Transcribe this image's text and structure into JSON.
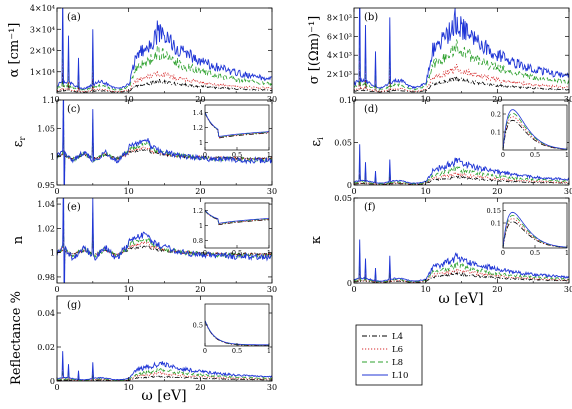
{
  "legend": {
    "entries": [
      {
        "label": "L4",
        "color": "#000000",
        "dash": "5,2,1,2"
      },
      {
        "label": "L6",
        "color": "#d62728",
        "dash": "1.2,1.8"
      },
      {
        "label": "L8",
        "color": "#2ca02c",
        "dash": "5,3"
      },
      {
        "label": "L10",
        "color": "#2036d6",
        "dash": ""
      }
    ]
  },
  "chart_data": [
    {
      "id": "a",
      "type": "line",
      "panel_label": "(a)",
      "ylabel": "α [cm⁻¹]",
      "xlabel": "",
      "xlim": [
        0,
        30
      ],
      "ylim": [
        0,
        40000
      ],
      "xticks": [
        "0",
        "10",
        "20",
        "30"
      ],
      "yticks": [
        {
          "v": 10000,
          "t": "1×10⁴"
        },
        {
          "v": 20000,
          "t": "2×10⁴"
        },
        {
          "v": 30000,
          "t": "3×10⁴"
        },
        {
          "v": 40000,
          "t": "4×10⁴"
        }
      ],
      "series_shape": "absorption",
      "peak_values": {
        "L4": 6000,
        "L6": 10000,
        "L8": 20000,
        "L10": 30000
      }
    },
    {
      "id": "b",
      "type": "line",
      "panel_label": "(b)",
      "ylabel": "σ [(Ωm)⁻¹]",
      "xlabel": "",
      "xlim": [
        0,
        30
      ],
      "ylim": [
        0,
        9000
      ],
      "xticks": [
        "0",
        "10",
        "20",
        "30"
      ],
      "yticks": [
        {
          "v": 2000,
          "t": "2×10³"
        },
        {
          "v": 4000,
          "t": "4×10³"
        },
        {
          "v": 6000,
          "t": "6×10³"
        },
        {
          "v": 8000,
          "t": "8×10³"
        }
      ],
      "series_shape": "absorption",
      "peak_values": {
        "L4": 1600,
        "L6": 2800,
        "L8": 5200,
        "L10": 8000
      }
    },
    {
      "id": "c",
      "type": "line",
      "panel_label": "(c)",
      "ylabel": "ε_r",
      "xlabel": "",
      "xlim": [
        0,
        30
      ],
      "ylim": [
        0.95,
        1.1
      ],
      "xticks": [
        "0",
        "10",
        "20",
        "30"
      ],
      "yticks": [
        {
          "v": 0.95,
          "t": "0.95"
        },
        {
          "v": 1.0,
          "t": "1"
        },
        {
          "v": 1.05,
          "t": "1.05"
        },
        {
          "v": 1.1,
          "t": "1.1"
        }
      ],
      "series_shape": "real",
      "baseline": 1.0,
      "bump_values": {
        "L4": 1.012,
        "L6": 1.016,
        "L8": 1.022,
        "L10": 1.028
      },
      "inset": {
        "xlim": [
          0,
          1
        ],
        "ylim": [
          0.9,
          1.5
        ],
        "xticks": [
          "0",
          "0.5",
          "1"
        ],
        "yticks": [
          {
            "v": 1.0,
            "t": "1"
          },
          {
            "v": 1.2,
            "t": "1.2"
          },
          {
            "v": 1.4,
            "t": "1.4"
          }
        ],
        "shape": "decay",
        "start": 1.4,
        "end": 1.1
      }
    },
    {
      "id": "d",
      "type": "line",
      "panel_label": "(d)",
      "ylabel": "ε_i",
      "xlabel": "",
      "xlim": [
        0,
        30
      ],
      "ylim": [
        0,
        0.1
      ],
      "xticks": [
        "0",
        "10",
        "20",
        "30"
      ],
      "yticks": [
        {
          "v": 0,
          "t": "0"
        },
        {
          "v": 0.05,
          "t": "0.05"
        },
        {
          "v": 0.1,
          "t": "0.1"
        }
      ],
      "series_shape": "absorption",
      "peak_values": {
        "L4": 0.01,
        "L6": 0.014,
        "L8": 0.02,
        "L10": 0.03
      },
      "inset": {
        "xlim": [
          0,
          1
        ],
        "ylim": [
          0,
          0.25
        ],
        "xticks": [
          "0",
          "0.5",
          "1"
        ],
        "yticks": [
          {
            "v": 0.1,
            "t": "0.1"
          },
          {
            "v": 0.2,
            "t": "0.2"
          }
        ],
        "shape": "peak",
        "peak": 0.22,
        "peak_x": 0.15
      }
    },
    {
      "id": "e",
      "type": "line",
      "panel_label": "(e)",
      "ylabel": "n",
      "xlabel": "",
      "xlim": [
        0,
        30
      ],
      "ylim": [
        0.975,
        1.045
      ],
      "xticks": [
        "0",
        "10",
        "20",
        "30"
      ],
      "yticks": [
        {
          "v": 0.98,
          "t": "0.98"
        },
        {
          "v": 1.0,
          "t": "1"
        },
        {
          "v": 1.02,
          "t": "1.02"
        },
        {
          "v": 1.04,
          "t": "1.04"
        }
      ],
      "series_shape": "real",
      "baseline": 1.0,
      "bump_values": {
        "L4": 1.005,
        "L6": 1.008,
        "L8": 1.011,
        "L10": 1.015
      },
      "inset": {
        "xlim": [
          0,
          1
        ],
        "ylim": [
          0.7,
          1.3
        ],
        "xticks": [
          "0",
          "0.5",
          "1"
        ],
        "yticks": [
          {
            "v": 0.8,
            "t": "0.8"
          },
          {
            "v": 1.0,
            "t": "1"
          },
          {
            "v": 1.2,
            "t": "1.2"
          }
        ],
        "shape": "decay",
        "start": 1.2,
        "end": 1.05
      }
    },
    {
      "id": "f",
      "type": "line",
      "panel_label": "(f)",
      "ylabel": "κ",
      "xlabel": "",
      "xlim": [
        0,
        30
      ],
      "ylim": [
        0,
        0.05
      ],
      "xticks": [
        "0",
        "10",
        "20",
        "30"
      ],
      "yticks": [
        {
          "v": 0,
          "t": "0"
        },
        {
          "v": 0.05,
          "t": "0.05"
        }
      ],
      "series_shape": "absorption",
      "peak_values": {
        "L4": 0.006,
        "L6": 0.008,
        "L8": 0.011,
        "L10": 0.016
      },
      "inset": {
        "xlim": [
          0,
          1
        ],
        "ylim": [
          0,
          0.18
        ],
        "xticks": [
          "0",
          "0.5",
          "1"
        ],
        "yticks": [
          {
            "v": 0.1,
            "t": "0.1"
          },
          {
            "v": 0.15,
            "t": "0.15"
          }
        ],
        "shape": "peak",
        "peak": 0.14,
        "peak_x": 0.15
      }
    },
    {
      "id": "g",
      "type": "line",
      "panel_label": "(g)",
      "ylabel": "Reflectance %",
      "xlabel": "ω [eV]",
      "xlim": [
        0,
        30
      ],
      "ylim": [
        0,
        0.05
      ],
      "xticks": [
        "0",
        "10",
        "20",
        "30"
      ],
      "yticks": [
        {
          "v": 0,
          "t": "0"
        },
        {
          "v": 0.02,
          "t": "0.02"
        },
        {
          "v": 0.04,
          "t": "0.04"
        }
      ],
      "series_shape": "absorption",
      "peak_values": {
        "L4": 0.003,
        "L6": 0.005,
        "L8": 0.007,
        "L10": 0.011
      },
      "inset": {
        "xlim": [
          0,
          1
        ],
        "ylim": [
          0,
          1
        ],
        "xticks": [
          "0",
          "0.5",
          "1"
        ],
        "yticks": [
          {
            "v": 0.5,
            "t": "0.5"
          }
        ],
        "shape": "decay",
        "start": 0.6,
        "end": 0.02
      }
    }
  ],
  "bottom_xlabels": {
    "left": "ω [eV]",
    "right": "ω [eV]"
  }
}
